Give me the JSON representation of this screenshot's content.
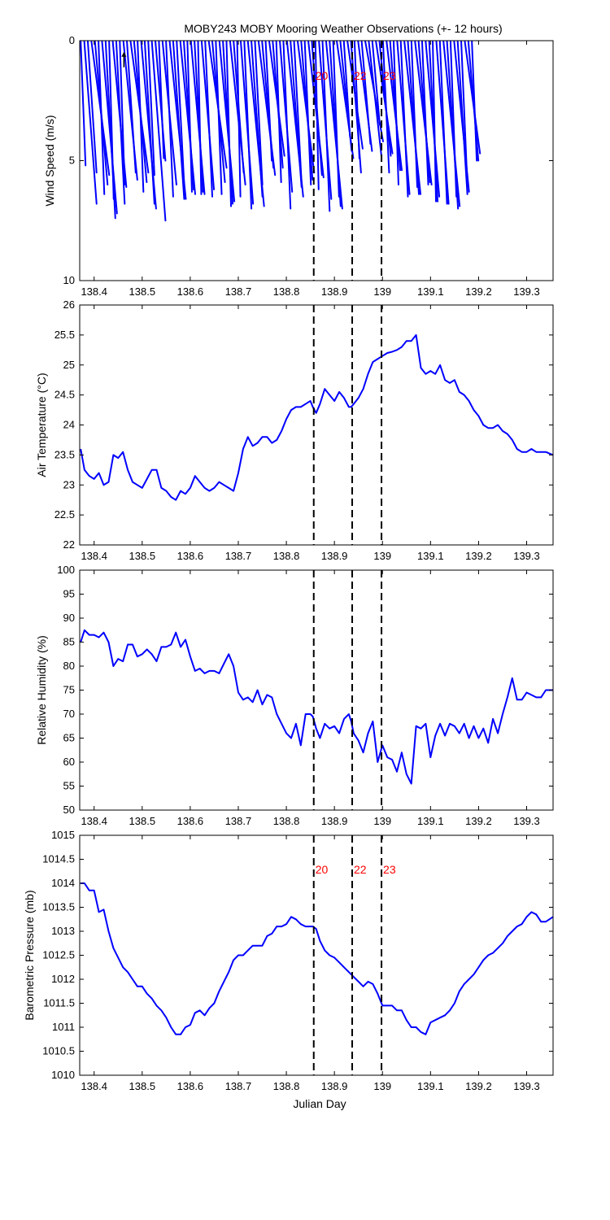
{
  "figure": {
    "title": "MOBY243 MOBY Mooring Weather Observations (+- 12 hours)",
    "xlabel": "Julian Day"
  },
  "style": {
    "line_color": "#0000ff",
    "marker_color": "#ff0000",
    "axis_color": "#000000",
    "background": "#ffffff"
  },
  "chart_data": [
    {
      "id": "wind",
      "type": "line",
      "subtype": "wind-vector-stick",
      "ylabel": "Wind Speed (m/s)",
      "xlim": [
        138.37,
        139.355
      ],
      "ylim": [
        0,
        10
      ],
      "y_reversed": true,
      "xticks": [
        138.4,
        138.5,
        138.6,
        138.7,
        138.8,
        138.9,
        139,
        139.1,
        139.2,
        139.3
      ],
      "xtick_labels": [
        "138.4",
        "138.5",
        "138.6",
        "138.7",
        "138.8",
        "138.9",
        "139",
        "139.1",
        "139.2",
        "139.3"
      ],
      "yticks": [
        0,
        5,
        10
      ],
      "ytick_labels": [
        "0",
        "5",
        "10"
      ],
      "x_start": 138.372,
      "x_step": 0.0074,
      "speeds": [
        5.2,
        6.8,
        5.5,
        5.6,
        6.0,
        6.4,
        7.2,
        7.4,
        6.6,
        6.1,
        6.8,
        6.0,
        5.8,
        5.5,
        5.5,
        5.9,
        6.3,
        7.0,
        6.8,
        5.6,
        7.5,
        5.0,
        4.9,
        6.0,
        6.5,
        6.6,
        6.6,
        6.0,
        6.4,
        6.2,
        6.3,
        6.4,
        6.3,
        6.4,
        6.2,
        6.5,
        5.3,
        5.9,
        6.4,
        6.7,
        6.8,
        6.9,
        6.0,
        5.5,
        6.5,
        6.8,
        7.0,
        6.9,
        6.5,
        6.0,
        5.6,
        5.3,
        5.0,
        4.8,
        5.3,
        5.9,
        6.3,
        7.0,
        6.5,
        6.1,
        5.9,
        5.5,
        5.8,
        6.0,
        5.7,
        5.6,
        6.2,
        6.6,
        7.1,
        7.0,
        6.9,
        6.5,
        4.9,
        4.6,
        4.0,
        4.5,
        5.5,
        4.9,
        4.6,
        4.3,
        4.2,
        4.8,
        3.5,
        4.7,
        4.8,
        5.5,
        5.4,
        5.4,
        6.0,
        6.4,
        6.5,
        6.4,
        6.4,
        6.1,
        6.0,
        5.9,
        6.0,
        6.5,
        6.7,
        6.7,
        6.8,
        6.8,
        6.9,
        7.0,
        6.5,
        6.3,
        6.4,
        6.0,
        4.7,
        5.0,
        5.0
      ],
      "annotation_x": 138.462,
      "annotation_y": 0.5
    },
    {
      "id": "air-temperature",
      "type": "line",
      "ylabel": "Air Temperature (°C)",
      "xlim": [
        138.37,
        139.355
      ],
      "ylim": [
        22,
        26
      ],
      "xticks": [
        138.4,
        138.5,
        138.6,
        138.7,
        138.8,
        138.9,
        139,
        139.1,
        139.2,
        139.3
      ],
      "xtick_labels": [
        "138.4",
        "138.5",
        "138.6",
        "138.7",
        "138.8",
        "138.9",
        "139",
        "139.1",
        "139.2",
        "139.3"
      ],
      "yticks": [
        22,
        22.5,
        23,
        23.5,
        24,
        24.5,
        25,
        25.5,
        26
      ],
      "ytick_labels": [
        "22",
        "22.5",
        "23",
        "23.5",
        "24",
        "24.5",
        "25",
        "25.5",
        "26"
      ],
      "series": [
        {
          "x": [
            138.372,
            138.38,
            138.39,
            138.4,
            138.41,
            138.42,
            138.43,
            138.44,
            138.45,
            138.46,
            138.47,
            138.48,
            138.49,
            138.5,
            138.51,
            138.52,
            138.53,
            138.54,
            138.55,
            138.56,
            138.57,
            138.58,
            138.59,
            138.6,
            138.61,
            138.62,
            138.63,
            138.64,
            138.65,
            138.66,
            138.67,
            138.68,
            138.69,
            138.7,
            138.71,
            138.72,
            138.73,
            138.74,
            138.75,
            138.76,
            138.77,
            138.78,
            138.79,
            138.8,
            138.81,
            138.82,
            138.83,
            138.84,
            138.85,
            138.855,
            138.862,
            138.87,
            138.88,
            138.89,
            138.9,
            138.91,
            138.92,
            138.93,
            138.935,
            138.94,
            138.95,
            138.96,
            138.97,
            138.98,
            138.99,
            139.0,
            139.01,
            139.02,
            139.03,
            139.04,
            139.05,
            139.06,
            139.07,
            139.08,
            139.09,
            139.1,
            139.11,
            139.12,
            139.13,
            139.14,
            139.15,
            139.16,
            139.17,
            139.18,
            139.19,
            139.2,
            139.21,
            139.22,
            139.23,
            139.24,
            139.25,
            139.26,
            139.27,
            139.28,
            139.29,
            139.3,
            139.31,
            139.32,
            139.33,
            139.34,
            139.355
          ],
          "y": [
            23.6,
            23.25,
            23.15,
            23.1,
            23.2,
            23.0,
            23.05,
            23.5,
            23.45,
            23.55,
            23.25,
            23.05,
            23.0,
            22.95,
            23.1,
            23.25,
            23.25,
            22.95,
            22.9,
            22.8,
            22.75,
            22.9,
            22.85,
            22.95,
            23.15,
            23.05,
            22.95,
            22.9,
            22.95,
            23.05,
            23.0,
            22.95,
            22.9,
            23.2,
            23.6,
            23.8,
            23.65,
            23.7,
            23.8,
            23.8,
            23.7,
            23.75,
            23.9,
            24.1,
            24.25,
            24.3,
            24.3,
            24.35,
            24.4,
            24.3,
            24.2,
            24.35,
            24.6,
            24.5,
            24.4,
            24.55,
            24.45,
            24.3,
            24.3,
            24.35,
            24.45,
            24.6,
            24.85,
            25.05,
            25.1,
            25.15,
            25.2,
            25.22,
            25.25,
            25.3,
            25.4,
            25.4,
            25.5,
            24.95,
            24.85,
            24.9,
            24.85,
            25.0,
            24.75,
            24.7,
            24.75,
            24.55,
            24.5,
            24.4,
            24.25,
            24.15,
            24.0,
            23.95,
            23.95,
            24.0,
            23.9,
            23.85,
            23.75,
            23.6,
            23.55,
            23.55,
            23.6,
            23.55,
            23.55,
            23.55,
            23.5
          ]
        }
      ]
    },
    {
      "id": "relative-humidity",
      "type": "line",
      "ylabel": "Relative Humidity (%)",
      "xlim": [
        138.37,
        139.355
      ],
      "ylim": [
        50,
        100
      ],
      "xticks": [
        138.4,
        138.5,
        138.6,
        138.7,
        138.8,
        138.9,
        139,
        139.1,
        139.2,
        139.3
      ],
      "xtick_labels": [
        "138.4",
        "138.5",
        "138.6",
        "138.7",
        "138.8",
        "138.9",
        "139",
        "139.1",
        "139.2",
        "139.3"
      ],
      "yticks": [
        50,
        55,
        60,
        65,
        70,
        75,
        80,
        85,
        90,
        95,
        100
      ],
      "ytick_labels": [
        "50",
        "55",
        "60",
        "65",
        "70",
        "75",
        "80",
        "85",
        "90",
        "95",
        "100"
      ],
      "series": [
        {
          "x": [
            138.372,
            138.38,
            138.39,
            138.4,
            138.41,
            138.42,
            138.43,
            138.44,
            138.45,
            138.46,
            138.47,
            138.48,
            138.49,
            138.5,
            138.51,
            138.52,
            138.53,
            138.54,
            138.55,
            138.56,
            138.57,
            138.58,
            138.59,
            138.6,
            138.61,
            138.62,
            138.63,
            138.64,
            138.65,
            138.66,
            138.67,
            138.68,
            138.69,
            138.7,
            138.71,
            138.72,
            138.73,
            138.74,
            138.75,
            138.76,
            138.77,
            138.78,
            138.79,
            138.8,
            138.81,
            138.82,
            138.83,
            138.84,
            138.85,
            138.855,
            138.862,
            138.87,
            138.88,
            138.89,
            138.9,
            138.91,
            138.92,
            138.93,
            138.935,
            138.94,
            138.95,
            138.96,
            138.97,
            138.98,
            138.99,
            139.0,
            139.01,
            139.02,
            139.03,
            139.04,
            139.05,
            139.06,
            139.07,
            139.08,
            139.09,
            139.1,
            139.11,
            139.12,
            139.13,
            139.14,
            139.15,
            139.16,
            139.17,
            139.18,
            139.19,
            139.2,
            139.21,
            139.22,
            139.23,
            139.24,
            139.25,
            139.26,
            139.27,
            139.28,
            139.29,
            139.3,
            139.31,
            139.32,
            139.33,
            139.34,
            139.355
          ],
          "y": [
            85.0,
            87.5,
            86.5,
            86.5,
            86.0,
            87.0,
            85.0,
            80.0,
            81.5,
            81.0,
            84.5,
            84.5,
            82.0,
            82.5,
            83.5,
            82.5,
            81.0,
            84.0,
            84.0,
            84.5,
            87.0,
            84.0,
            85.5,
            82.0,
            79.0,
            79.5,
            78.5,
            79.0,
            79.0,
            78.5,
            80.5,
            82.5,
            80.0,
            74.5,
            73.0,
            73.5,
            72.5,
            75.0,
            72.0,
            74.0,
            73.5,
            70.0,
            68.0,
            66.0,
            65.0,
            68.0,
            63.5,
            70.0,
            70.0,
            69.5,
            67.0,
            65.0,
            68.0,
            67.0,
            67.5,
            66.0,
            69.0,
            70.0,
            68.5,
            66.0,
            64.5,
            62.0,
            66.0,
            68.5,
            60.0,
            63.5,
            61.0,
            60.5,
            58.0,
            62.0,
            57.5,
            55.5,
            67.5,
            67.0,
            68.0,
            61.0,
            65.5,
            68.0,
            65.5,
            68.0,
            67.5,
            66.0,
            68.0,
            65.0,
            67.5,
            65.0,
            67.0,
            64.0,
            69.0,
            66.0,
            70.0,
            73.5,
            77.5,
            73.0,
            73.0,
            74.5,
            74.0,
            73.5,
            73.5,
            75.0,
            75.0
          ]
        }
      ]
    },
    {
      "id": "barometric-pressure",
      "type": "line",
      "ylabel": "Barometric Pressure (mb)",
      "xlim": [
        138.37,
        139.355
      ],
      "ylim": [
        1010,
        1015
      ],
      "xticks": [
        138.4,
        138.5,
        138.6,
        138.7,
        138.8,
        138.9,
        139,
        139.1,
        139.2,
        139.3
      ],
      "xtick_labels": [
        "138.4",
        "138.5",
        "138.6",
        "138.7",
        "138.8",
        "138.9",
        "139",
        "139.1",
        "139.2",
        "139.3"
      ],
      "yticks": [
        1010,
        1010.5,
        1011,
        1011.5,
        1012,
        1012.5,
        1013,
        1013.5,
        1014,
        1014.5,
        1015
      ],
      "ytick_labels": [
        "1010",
        "1010.5",
        "1011",
        "1011.5",
        "1012",
        "1012.5",
        "1013",
        "1013.5",
        "1014",
        "1014.5",
        "1015"
      ],
      "series": [
        {
          "x": [
            138.372,
            138.38,
            138.39,
            138.4,
            138.41,
            138.42,
            138.43,
            138.44,
            138.45,
            138.46,
            138.47,
            138.48,
            138.49,
            138.5,
            138.51,
            138.52,
            138.53,
            138.54,
            138.55,
            138.56,
            138.57,
            138.58,
            138.59,
            138.6,
            138.61,
            138.62,
            138.63,
            138.64,
            138.65,
            138.66,
            138.67,
            138.68,
            138.69,
            138.7,
            138.71,
            138.72,
            138.73,
            138.74,
            138.75,
            138.76,
            138.77,
            138.78,
            138.79,
            138.8,
            138.81,
            138.82,
            138.83,
            138.84,
            138.85,
            138.855,
            138.862,
            138.87,
            138.88,
            138.89,
            138.9,
            138.91,
            138.92,
            138.93,
            138.935,
            138.94,
            138.95,
            138.96,
            138.97,
            138.98,
            138.99,
            139.0,
            139.01,
            139.02,
            139.03,
            139.04,
            139.05,
            139.06,
            139.07,
            139.08,
            139.09,
            139.1,
            139.11,
            139.12,
            139.13,
            139.14,
            139.15,
            139.16,
            139.17,
            139.18,
            139.19,
            139.2,
            139.21,
            139.22,
            139.23,
            139.24,
            139.25,
            139.26,
            139.27,
            139.28,
            139.29,
            139.3,
            139.31,
            139.32,
            139.33,
            139.34,
            139.355
          ],
          "y": [
            1014.0,
            1014.0,
            1013.85,
            1013.85,
            1013.4,
            1013.45,
            1013.0,
            1012.65,
            1012.45,
            1012.25,
            1012.15,
            1012.0,
            1011.85,
            1011.85,
            1011.7,
            1011.6,
            1011.45,
            1011.35,
            1011.2,
            1011.0,
            1010.85,
            1010.85,
            1011.0,
            1011.05,
            1011.3,
            1011.35,
            1011.25,
            1011.4,
            1011.5,
            1011.75,
            1011.95,
            1012.15,
            1012.4,
            1012.5,
            1012.5,
            1012.6,
            1012.7,
            1012.7,
            1012.7,
            1012.9,
            1012.95,
            1013.1,
            1013.1,
            1013.15,
            1013.3,
            1013.25,
            1013.15,
            1013.1,
            1013.1,
            1013.1,
            1013.05,
            1012.8,
            1012.6,
            1012.5,
            1012.45,
            1012.35,
            1012.25,
            1012.15,
            1012.1,
            1012.05,
            1011.95,
            1011.85,
            1011.95,
            1011.9,
            1011.7,
            1011.45,
            1011.45,
            1011.45,
            1011.35,
            1011.35,
            1011.15,
            1011.0,
            1011.0,
            1010.9,
            1010.85,
            1011.1,
            1011.15,
            1011.2,
            1011.25,
            1011.35,
            1011.5,
            1011.75,
            1011.9,
            1012.0,
            1012.1,
            1012.25,
            1012.4,
            1012.5,
            1012.55,
            1012.65,
            1012.75,
            1012.9,
            1013.0,
            1013.1,
            1013.15,
            1013.3,
            1013.4,
            1013.35,
            1013.2,
            1013.2,
            1013.3
          ]
        }
      ]
    }
  ],
  "markers": {
    "lines": [
      {
        "label": "20",
        "x": 138.857
      },
      {
        "label": "22",
        "x": 138.937
      },
      {
        "label": "23",
        "x": 138.998
      }
    ],
    "label_panels": [
      "wind",
      "barometric-pressure"
    ]
  }
}
